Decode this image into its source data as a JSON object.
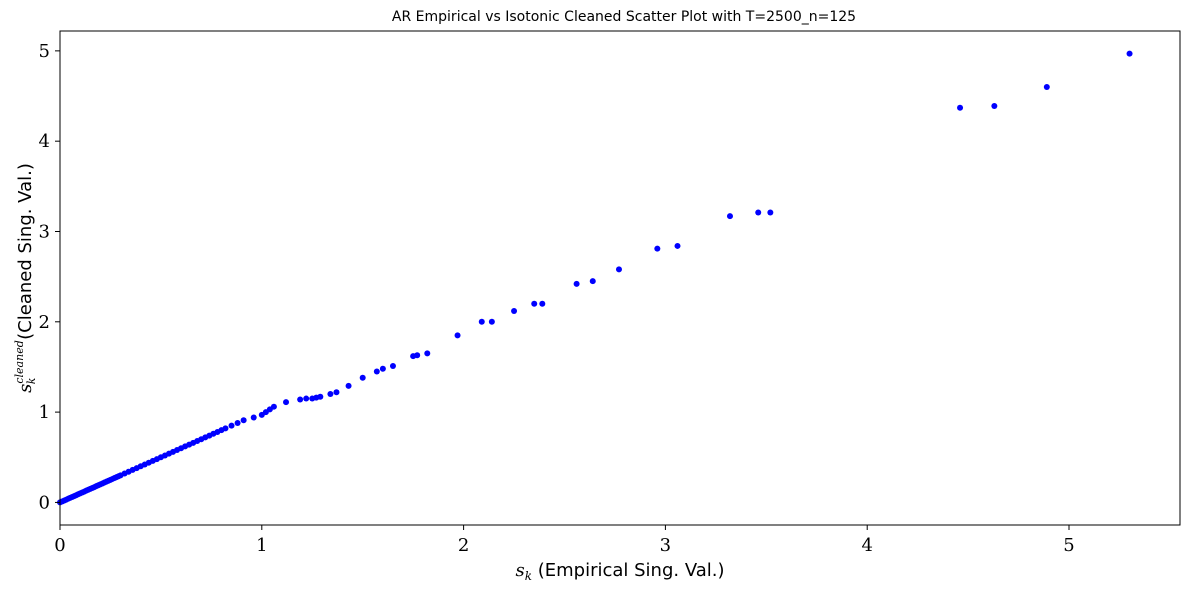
{
  "chart_data": {
    "type": "scatter",
    "title": "AR Empirical vs Isotonic Cleaned Scatter Plot with T=2500_n=125",
    "xlabel": {
      "symbol": "s",
      "sub": "k",
      "text": "(Empirical Sing. Val.)"
    },
    "ylabel": {
      "symbol": "s",
      "sub": "k",
      "sup": "cleaned",
      "text": "(Cleaned Sing. Val.)"
    },
    "xlim": [
      0,
      5.55
    ],
    "ylim": [
      -0.25,
      5.22
    ],
    "xticks": [
      0,
      1,
      2,
      3,
      4,
      5
    ],
    "yticks": [
      0,
      1,
      2,
      3,
      4,
      5
    ],
    "grid": false,
    "marker_color": "#0000ff",
    "x": [
      0.0,
      0.01,
      0.02,
      0.03,
      0.04,
      0.05,
      0.06,
      0.07,
      0.08,
      0.09,
      0.1,
      0.11,
      0.12,
      0.13,
      0.14,
      0.15,
      0.16,
      0.17,
      0.18,
      0.19,
      0.2,
      0.21,
      0.22,
      0.23,
      0.24,
      0.25,
      0.26,
      0.27,
      0.28,
      0.29,
      0.3,
      0.32,
      0.34,
      0.36,
      0.38,
      0.4,
      0.42,
      0.44,
      0.46,
      0.48,
      0.5,
      0.52,
      0.54,
      0.56,
      0.58,
      0.6,
      0.62,
      0.64,
      0.66,
      0.68,
      0.7,
      0.72,
      0.74,
      0.76,
      0.78,
      0.8,
      0.82,
      0.85,
      0.88,
      0.91,
      0.96,
      1.0,
      1.02,
      1.04,
      1.06,
      1.12,
      1.19,
      1.22,
      1.25,
      1.27,
      1.29,
      1.34,
      1.37,
      1.43,
      1.5,
      1.57,
      1.6,
      1.65,
      1.75,
      1.77,
      1.82,
      1.97,
      2.09,
      2.14,
      2.25,
      2.35,
      2.39,
      2.56,
      2.64,
      2.77,
      2.96,
      3.06,
      3.32,
      3.46,
      3.52,
      4.46,
      4.63,
      4.89,
      5.3
    ],
    "y": [
      0.0,
      0.01,
      0.02,
      0.03,
      0.04,
      0.05,
      0.06,
      0.07,
      0.08,
      0.09,
      0.1,
      0.11,
      0.12,
      0.13,
      0.14,
      0.15,
      0.16,
      0.17,
      0.18,
      0.19,
      0.2,
      0.21,
      0.22,
      0.23,
      0.24,
      0.25,
      0.26,
      0.27,
      0.28,
      0.29,
      0.3,
      0.32,
      0.34,
      0.36,
      0.38,
      0.4,
      0.42,
      0.44,
      0.46,
      0.48,
      0.5,
      0.52,
      0.54,
      0.56,
      0.58,
      0.6,
      0.62,
      0.64,
      0.66,
      0.68,
      0.7,
      0.72,
      0.74,
      0.76,
      0.78,
      0.8,
      0.82,
      0.85,
      0.88,
      0.91,
      0.94,
      0.97,
      1.0,
      1.03,
      1.06,
      1.11,
      1.14,
      1.15,
      1.15,
      1.16,
      1.17,
      1.2,
      1.22,
      1.29,
      1.38,
      1.45,
      1.48,
      1.51,
      1.62,
      1.63,
      1.65,
      1.85,
      2.0,
      2.0,
      2.12,
      2.2,
      2.2,
      2.42,
      2.45,
      2.58,
      2.81,
      2.84,
      3.17,
      3.21,
      3.21,
      4.37,
      4.39,
      4.6,
      4.97
    ]
  }
}
